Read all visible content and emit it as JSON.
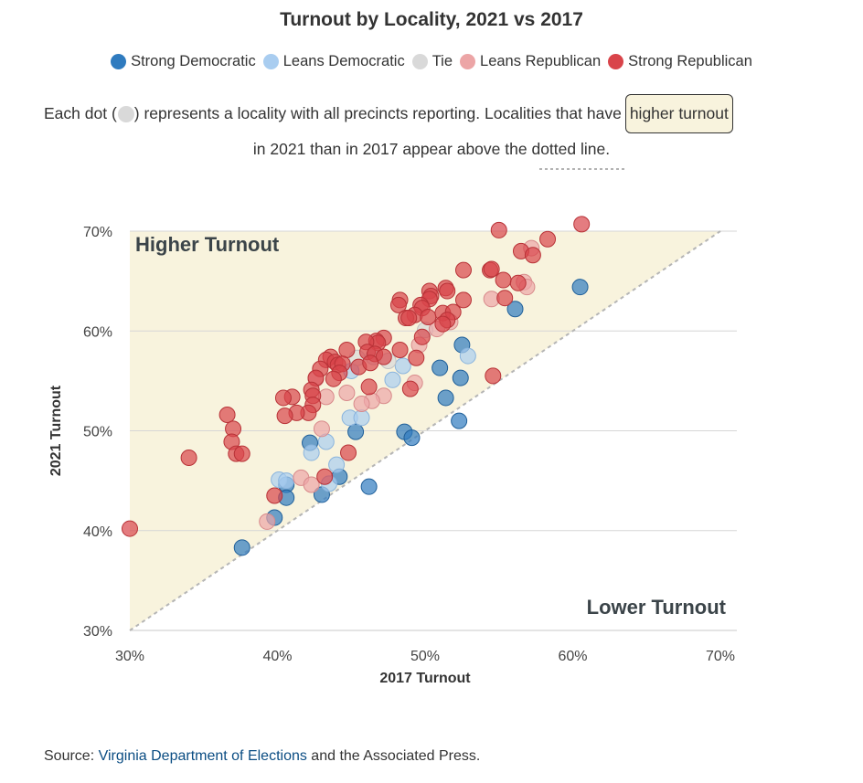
{
  "header": {
    "title": "Turnout by Locality, 2021 vs 2017"
  },
  "legend": {
    "items": [
      {
        "label": "Strong Democratic",
        "color": "#2f7bbf"
      },
      {
        "label": "Leans Democratic",
        "color": "#a9cdf0"
      },
      {
        "label": "Tie",
        "color": "#d9d9d9"
      },
      {
        "label": "Leans Republican",
        "color": "#eca5a6"
      },
      {
        "label": "Strong Republican",
        "color": "#d9444a"
      }
    ]
  },
  "description": {
    "part1": "Each dot (",
    "part2": ") represents a locality with all precincts reporting. Localities that have",
    "highlight": "higher turnout",
    "line2": "in 2021 than in 2017 appear above the",
    "line2_underlined": "dotted line",
    "line2_end": "."
  },
  "source": {
    "prefix": "Source: ",
    "link": "Virginia Department of Elections",
    "suffix": " and the Associated Press."
  },
  "chart_data": {
    "type": "scatter",
    "title": "Turnout by Locality, 2021 vs 2017",
    "xlabel": "2017 Turnout",
    "ylabel": "2021 Turnout",
    "xlim": [
      30,
      70
    ],
    "ylim": [
      30,
      70
    ],
    "x_ticks": [
      "30%",
      "40%",
      "50%",
      "60%",
      "70%"
    ],
    "y_ticks": [
      "30%",
      "40%",
      "50%",
      "60%",
      "70%"
    ],
    "x_tick_values": [
      30,
      40,
      50,
      60,
      70
    ],
    "y_tick_values": [
      30,
      40,
      50,
      60,
      70
    ],
    "reference_line": "y = x (dotted)",
    "region_labels": {
      "above": "Higher Turnout",
      "below": "Lower Turnout"
    },
    "grid": "horizontal",
    "series": [
      {
        "name": "Strong Democratic",
        "color": "#2f7bbf",
        "points": [
          [
            60.5,
            64.4
          ],
          [
            56.1,
            62.2
          ],
          [
            52.5,
            58.6
          ],
          [
            51.0,
            56.3
          ],
          [
            52.4,
            55.3
          ],
          [
            51.4,
            53.3
          ],
          [
            52.3,
            51.0
          ],
          [
            48.6,
            49.9
          ],
          [
            49.1,
            49.3
          ],
          [
            45.3,
            49.9
          ],
          [
            42.2,
            48.8
          ],
          [
            44.2,
            45.4
          ],
          [
            43.0,
            43.6
          ],
          [
            46.2,
            44.4
          ],
          [
            40.6,
            44.6
          ],
          [
            40.6,
            43.3
          ],
          [
            39.8,
            41.3
          ],
          [
            37.6,
            38.3
          ]
        ]
      },
      {
        "name": "Leans Democratic",
        "color": "#a9cdf0",
        "points": [
          [
            52.9,
            57.5
          ],
          [
            48.5,
            56.5
          ],
          [
            47.8,
            55.1
          ],
          [
            45.0,
            56.0
          ],
          [
            44.9,
            51.3
          ],
          [
            45.7,
            51.3
          ],
          [
            43.3,
            48.9
          ],
          [
            42.3,
            47.8
          ],
          [
            44.0,
            46.6
          ],
          [
            40.1,
            45.1
          ],
          [
            40.6,
            45.0
          ],
          [
            43.5,
            44.7
          ]
        ]
      },
      {
        "name": "Tie",
        "color": "#d9d9d9",
        "points": [
          [
            50.0,
            60.1
          ],
          [
            47.5,
            57.0
          ],
          [
            46.5,
            57.4
          ],
          [
            45.4,
            57.3
          ]
        ]
      },
      {
        "name": "Leans Republican",
        "color": "#eca5a6",
        "points": [
          [
            57.2,
            68.3
          ],
          [
            56.7,
            64.9
          ],
          [
            56.9,
            64.4
          ],
          [
            54.5,
            63.2
          ],
          [
            51.7,
            60.9
          ],
          [
            50.8,
            60.2
          ],
          [
            49.6,
            58.6
          ],
          [
            49.3,
            54.8
          ],
          [
            47.2,
            53.5
          ],
          [
            46.4,
            53.0
          ],
          [
            45.7,
            52.7
          ],
          [
            44.7,
            53.8
          ],
          [
            43.3,
            53.4
          ],
          [
            42.6,
            55.2
          ],
          [
            43.0,
            50.2
          ],
          [
            41.6,
            45.3
          ],
          [
            42.3,
            44.6
          ],
          [
            39.3,
            40.9
          ]
        ]
      },
      {
        "name": "Strong Republican",
        "color": "#d9444a",
        "points": [
          [
            60.6,
            70.7
          ],
          [
            55.0,
            70.1
          ],
          [
            58.3,
            69.2
          ],
          [
            56.5,
            68.0
          ],
          [
            57.3,
            67.6
          ],
          [
            52.6,
            66.1
          ],
          [
            54.4,
            66.1
          ],
          [
            54.5,
            66.2
          ],
          [
            55.3,
            65.1
          ],
          [
            56.3,
            64.8
          ],
          [
            51.4,
            64.3
          ],
          [
            50.3,
            64.0
          ],
          [
            51.5,
            64.0
          ],
          [
            50.4,
            63.5
          ],
          [
            50.3,
            63.2
          ],
          [
            52.6,
            63.1
          ],
          [
            48.3,
            63.1
          ],
          [
            48.2,
            62.6
          ],
          [
            49.7,
            62.6
          ],
          [
            49.8,
            62.3
          ],
          [
            51.2,
            61.8
          ],
          [
            51.9,
            61.9
          ],
          [
            49.3,
            61.6
          ],
          [
            48.7,
            61.3
          ],
          [
            48.9,
            61.3
          ],
          [
            50.2,
            61.4
          ],
          [
            51.5,
            61.1
          ],
          [
            49.8,
            59.4
          ],
          [
            51.2,
            60.7
          ],
          [
            48.3,
            58.1
          ],
          [
            47.2,
            59.3
          ],
          [
            46.7,
            59.0
          ],
          [
            46.8,
            58.8
          ],
          [
            46.0,
            58.9
          ],
          [
            46.1,
            57.9
          ],
          [
            44.7,
            58.1
          ],
          [
            46.6,
            57.7
          ],
          [
            47.2,
            57.4
          ],
          [
            43.6,
            57.4
          ],
          [
            43.3,
            57.1
          ],
          [
            43.9,
            56.9
          ],
          [
            44.1,
            56.6
          ],
          [
            44.4,
            56.7
          ],
          [
            45.5,
            56.4
          ],
          [
            46.3,
            56.8
          ],
          [
            42.9,
            56.2
          ],
          [
            44.2,
            55.8
          ],
          [
            43.8,
            55.2
          ],
          [
            42.6,
            55.3
          ],
          [
            49.4,
            57.3
          ],
          [
            46.2,
            54.4
          ],
          [
            49.0,
            54.2
          ],
          [
            54.6,
            55.5
          ],
          [
            55.4,
            63.3
          ],
          [
            42.3,
            54.1
          ],
          [
            42.4,
            53.5
          ],
          [
            41.0,
            53.4
          ],
          [
            40.4,
            53.3
          ],
          [
            42.4,
            52.6
          ],
          [
            42.1,
            51.8
          ],
          [
            41.3,
            51.8
          ],
          [
            40.5,
            51.5
          ],
          [
            36.6,
            51.6
          ],
          [
            37.0,
            50.2
          ],
          [
            36.9,
            48.9
          ],
          [
            37.2,
            47.7
          ],
          [
            37.6,
            47.7
          ],
          [
            34.0,
            47.3
          ],
          [
            44.8,
            47.8
          ],
          [
            43.2,
            45.4
          ],
          [
            39.8,
            43.5
          ],
          [
            30.0,
            40.2
          ]
        ]
      }
    ]
  }
}
